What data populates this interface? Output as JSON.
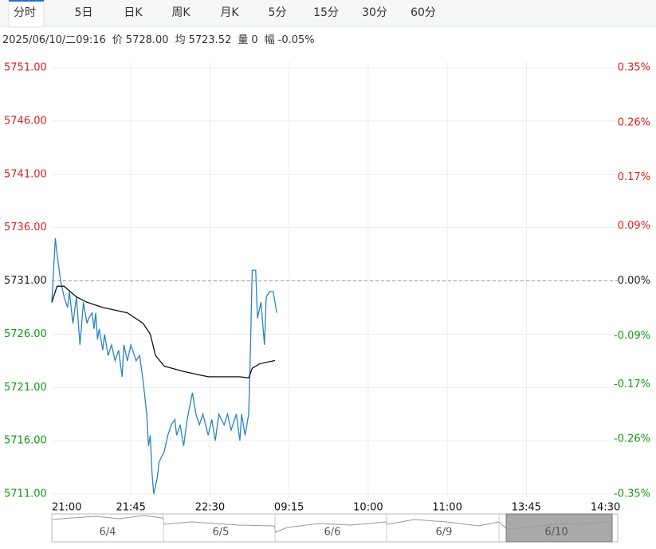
{
  "tabs": [
    {
      "label": "分时",
      "selected": true
    },
    {
      "label": "5日"
    },
    {
      "label": "日K"
    },
    {
      "label": "周K"
    },
    {
      "label": "月K"
    },
    {
      "label": "5分"
    },
    {
      "label": "15分"
    },
    {
      "label": "30分"
    },
    {
      "label": "60分"
    }
  ],
  "info": {
    "time": "2025/06/10/二09:16",
    "price_label": "价",
    "price": "5728.00",
    "avg_label": "均",
    "avg": "5723.52",
    "volume_label": "量",
    "volume": "0",
    "change_label": "幅",
    "change": "-0.05%"
  },
  "chart_data": {
    "type": "line",
    "xlim": [
      0,
      322
    ],
    "xticks": [
      {
        "value": 0,
        "label": "21:00"
      },
      {
        "value": 45,
        "label": "21:45"
      },
      {
        "value": 90,
        "label": "22:30"
      },
      {
        "value": 135,
        "label": "09:15"
      },
      {
        "value": 180,
        "label": "10:00"
      },
      {
        "value": 225,
        "label": "11:00"
      },
      {
        "value": 270,
        "label": "13:45"
      },
      {
        "value": 315,
        "label": "14:30"
      }
    ],
    "ylim": [
      5711,
      5751
    ],
    "yticks": [
      {
        "value": 5751,
        "label": "5751.00"
      },
      {
        "value": 5746,
        "label": "5746.00"
      },
      {
        "value": 5741,
        "label": "5741.00"
      },
      {
        "value": 5736,
        "label": "5736.00"
      },
      {
        "value": 5731,
        "label": "5731.00"
      },
      {
        "value": 5726,
        "label": "5726.00"
      },
      {
        "value": 5721,
        "label": "5721.00"
      },
      {
        "value": 5716,
        "label": "5716.00"
      },
      {
        "value": 5711,
        "label": "5711.00"
      }
    ],
    "y2lim": [
      -0.35,
      0.35
    ],
    "y2ticks": [
      {
        "value": 0.35,
        "label": "0.35%"
      },
      {
        "value": 0.26,
        "label": "0.26%"
      },
      {
        "value": 0.17,
        "label": "0.17%"
      },
      {
        "value": 0.09,
        "label": "0.09%"
      },
      {
        "value": 0,
        "label": "0.00%"
      },
      {
        "value": -0.09,
        "label": "-0.09%"
      },
      {
        "value": -0.17,
        "label": "-0.17%"
      },
      {
        "value": -0.26,
        "label": "-0.26%"
      },
      {
        "value": -0.35,
        "label": "-0.35%"
      }
    ],
    "reference_line": 5731,
    "up_color": "#e02020",
    "down_color": "#119911",
    "flat_color": "#222222",
    "grid": true,
    "series": [
      {
        "color": "#2a83c6",
        "x": [
          0,
          2,
          3,
          5,
          7,
          9,
          10,
          12,
          14,
          16,
          18,
          20,
          21,
          23,
          24,
          25,
          26,
          27,
          29,
          30,
          32,
          34,
          36,
          38,
          40,
          41,
          43,
          45,
          48,
          50,
          52,
          54,
          55,
          56,
          57,
          58,
          60,
          61,
          64,
          66,
          68,
          70,
          71,
          73,
          75,
          77,
          80,
          82,
          84,
          86,
          89,
          91,
          93,
          95,
          98,
          100,
          102,
          105,
          107,
          108,
          110,
          112,
          113,
          114,
          116,
          117,
          119,
          121,
          122,
          124,
          126,
          128
        ],
        "values": [
          5729,
          5735,
          5733.5,
          5731,
          5729.5,
          5728.5,
          5730,
          5727,
          5729.5,
          5725,
          5729,
          5727,
          5727.5,
          5728,
          5726.5,
          5728,
          5725.5,
          5726.5,
          5724.5,
          5726,
          5724,
          5725,
          5723.5,
          5724.5,
          5722,
          5725,
          5723.5,
          5725,
          5723.5,
          5724,
          5721.5,
          5718.5,
          5715.5,
          5716.5,
          5713,
          5711,
          5712.5,
          5714,
          5715,
          5716.5,
          5717.5,
          5718,
          5716.5,
          5717.5,
          5715.5,
          5718,
          5720.5,
          5718.5,
          5717.5,
          5718.5,
          5716.5,
          5718,
          5716,
          5718.5,
          5717.5,
          5718.5,
          5717,
          5718.5,
          5716,
          5718.5,
          5716.5,
          5718.5,
          5724.5,
          5732,
          5732,
          5727.5,
          5729,
          5725,
          5729.5,
          5730,
          5730,
          5728
        ]
      },
      {
        "color": "#111111",
        "x": [
          0,
          3,
          7,
          14,
          20,
          29,
          43,
          52,
          56,
          59,
          64,
          75,
          89,
          107,
          112,
          114,
          118,
          123,
          127
        ],
        "values": [
          5729,
          5730.5,
          5730.5,
          5729.5,
          5729,
          5728.5,
          5728,
          5727,
          5726,
          5724,
          5723,
          5722.5,
          5722,
          5722,
          5721.9,
          5722.8,
          5723.2,
          5723.4,
          5723.52
        ]
      }
    ]
  },
  "navigator": {
    "dates": [
      "6/4",
      "6/5",
      "6/6",
      "6/9",
      "6/10"
    ]
  }
}
